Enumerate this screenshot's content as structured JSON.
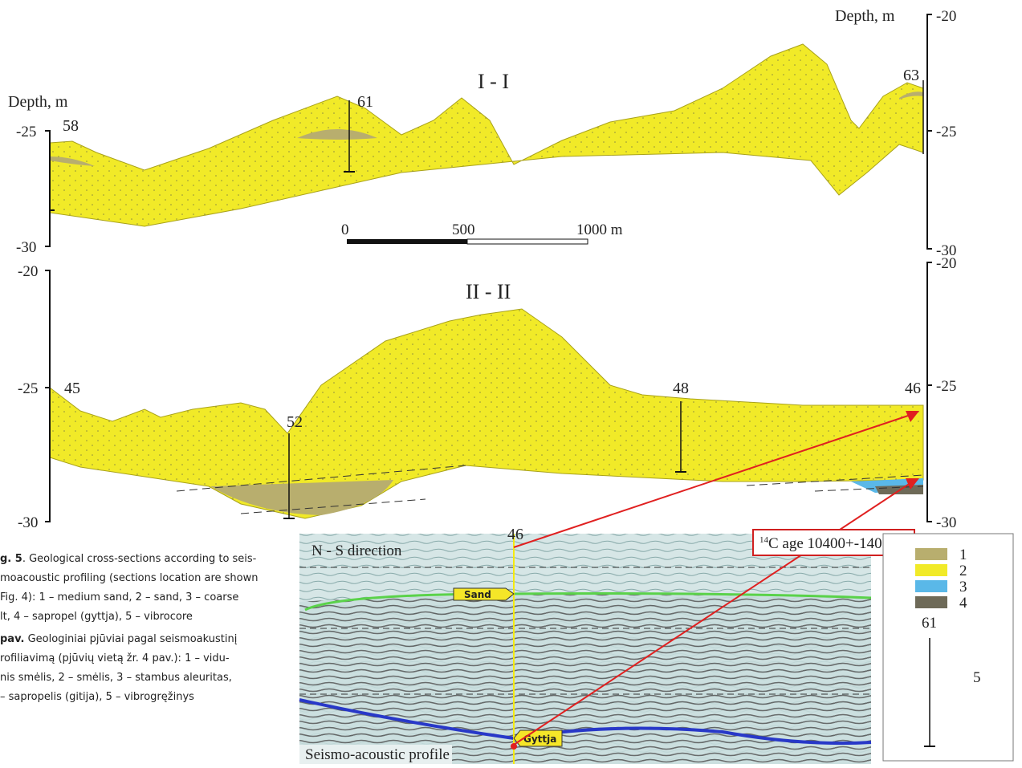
{
  "section_1": {
    "depth_label_left": "Depth, m",
    "depth_label_right": "Depth, m",
    "left_ticks": [
      "-25",
      "-30"
    ],
    "right_ticks": [
      "-20",
      "-25",
      "-30"
    ],
    "title": "I - I",
    "cores": [
      "58",
      "61",
      "63"
    ]
  },
  "scale": {
    "labels": [
      "0",
      "500",
      "1000 m"
    ]
  },
  "section_2": {
    "left_ticks": [
      "-20",
      "-25",
      "-30"
    ],
    "right_ticks": [
      "-20",
      "-25",
      "-30"
    ],
    "title": "II - II",
    "cores": [
      "45",
      "52",
      "48",
      "46"
    ]
  },
  "seismic": {
    "core": "46",
    "age_sup": "14",
    "age": "C age 10400+-140",
    "direction": "N - S direction",
    "sand": "Sand",
    "gyttja": "Gyttja",
    "title": "Seismo-acoustic profile"
  },
  "legend": {
    "items": [
      "1",
      "2",
      "3",
      "4"
    ],
    "core_number": "61",
    "core_item": "5"
  },
  "caption": {
    "en_bold": "g. 5",
    "en_lines": [
      ". Geological cross-sections according to seis-",
      "moacoustic profiling (sections location are shown",
      "Fig. 4): 1 – medium sand, 2 – sand, 3 – coarse",
      "lt, 4 – sapropel (gyttja), 5 – vibrocore"
    ],
    "lt_bold": "pav.",
    "lt_lines": [
      " Geologiniai pjūviai pagal seismoakustinį",
      "rofiliavimą (pjūvių vietą žr. 4 pav.): 1 – vidu-",
      "nis smėlis, 2 – smėlis, 3 – stambus aleuritas,",
      "– sapropelis (gitija), 5 – vibrogręžinys"
    ]
  }
}
